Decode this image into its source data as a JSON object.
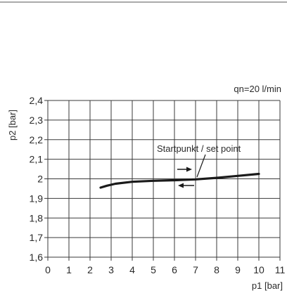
{
  "chart_data": {
    "type": "line",
    "xlabel": "p1 [bar]",
    "ylabel": "p2 [bar]",
    "xlim": [
      0,
      11
    ],
    "ylim": [
      1.6,
      2.4
    ],
    "grid": true,
    "xticks": [
      0,
      1,
      2,
      3,
      4,
      5,
      6,
      7,
      8,
      9,
      10,
      11
    ],
    "xtick_labels": [
      "0",
      "1",
      "2",
      "3",
      "4",
      "5",
      "6",
      "7",
      "8",
      "9",
      "10",
      "11"
    ],
    "yticks": [
      1.6,
      1.7,
      1.8,
      1.9,
      2.0,
      2.1,
      2.2,
      2.3,
      2.4
    ],
    "ytick_labels": [
      "1,6",
      "1,7",
      "1,8",
      "1,9",
      "2",
      "2,1",
      "2,2",
      "2,3",
      "2,4"
    ],
    "series": [
      {
        "x": [
          2.5,
          2.8,
          3.2,
          4.0,
          5.0,
          6.0,
          7.0,
          8.0,
          9.0,
          10.0
        ],
        "y": [
          1.955,
          1.965,
          1.975,
          1.985,
          1.99,
          1.993,
          1.997,
          2.005,
          2.015,
          2.025
        ]
      }
    ],
    "annotations": {
      "flow": "qn=20 l/min",
      "set_point": "Startpunkt / set point"
    }
  },
  "colors": {
    "line": "#1a1a1a",
    "grid": "#3a3a3a",
    "text": "#2a2a2a"
  }
}
